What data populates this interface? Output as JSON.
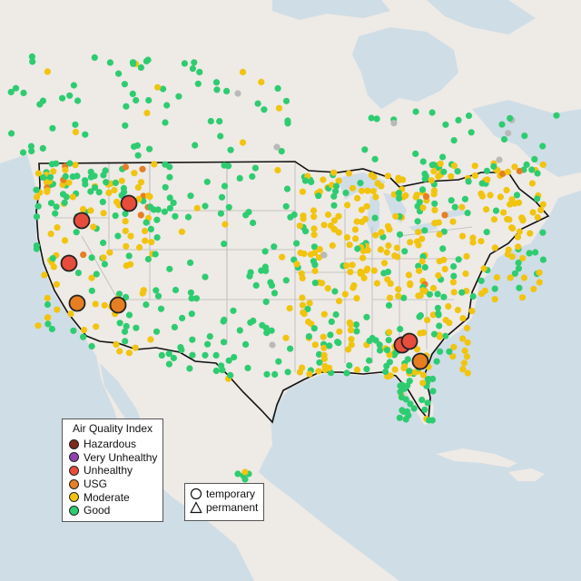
{
  "legend": {
    "title": "Air Quality Index",
    "items": [
      {
        "label": "Hazardous",
        "color": "#7e2a1f"
      },
      {
        "label": "Very Unhealthy",
        "color": "#8e44ad"
      },
      {
        "label": "Unhealthy",
        "color": "#e74c3c"
      },
      {
        "label": "USG",
        "color": "#e67e22"
      },
      {
        "label": "Moderate",
        "color": "#f1c40f"
      },
      {
        "label": "Good",
        "color": "#2ecc71"
      }
    ]
  },
  "shape_legend": {
    "temporary": "temporary",
    "permanent": "permanent"
  },
  "colors": {
    "water": "#cfdde6",
    "land": "#eeeae6",
    "usa_land": "#f2f0ee",
    "no_data": "#b9b9b9"
  }
}
